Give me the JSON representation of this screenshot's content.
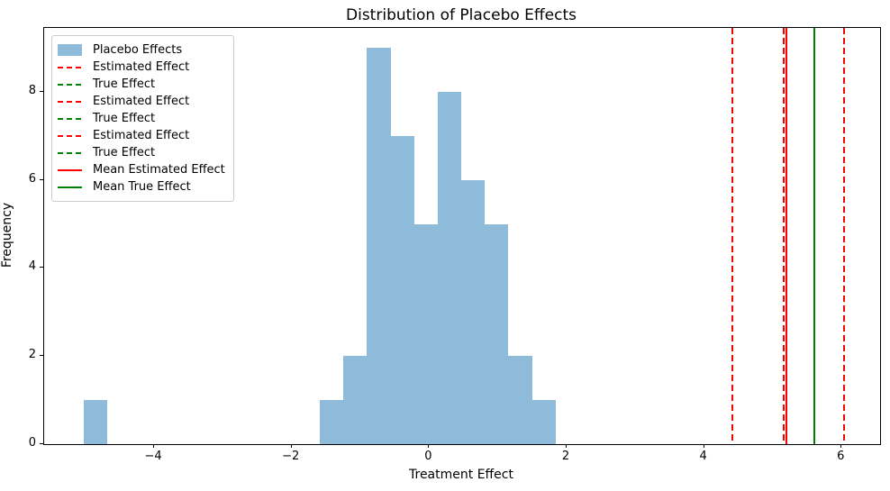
{
  "chart_data": {
    "type": "bar",
    "subtype": "histogram-with-vlines",
    "title": "Distribution of Placebo Effects",
    "xlabel": "Treatment Effect",
    "ylabel": "Frequency",
    "xlim": [
      -5.6,
      6.56
    ],
    "ylim": [
      0,
      9.45
    ],
    "grid": false,
    "legend_position": "upper-left",
    "bar_color": "#8fbbda",
    "accent_red": "#ff0000",
    "accent_green": "#008000",
    "bins": {
      "start": -5.02,
      "width": 0.343,
      "counts": [
        1,
        0,
        0,
        0,
        0,
        0,
        0,
        0,
        0,
        0,
        1,
        2,
        9,
        7,
        5,
        8,
        6,
        5,
        2,
        1
      ]
    },
    "series_label": "Placebo Effects",
    "xticks": [
      {
        "value": -4,
        "label": "−4"
      },
      {
        "value": -2,
        "label": "−2"
      },
      {
        "value": 0,
        "label": "0"
      },
      {
        "value": 2,
        "label": "2"
      },
      {
        "value": 4,
        "label": "4"
      },
      {
        "value": 6,
        "label": "6"
      }
    ],
    "yticks": [
      {
        "value": 0,
        "label": "0"
      },
      {
        "value": 2,
        "label": "2"
      },
      {
        "value": 4,
        "label": "4"
      },
      {
        "value": 6,
        "label": "6"
      },
      {
        "value": 8,
        "label": "8"
      }
    ],
    "vlines": [
      {
        "label": "Estimated Effect",
        "x": 4.41,
        "color": "#ff0000",
        "style": "dashed"
      },
      {
        "label": "True Effect",
        "x": 5.6,
        "color": "#008000",
        "style": "dashed"
      },
      {
        "label": "Estimated Effect",
        "x": 5.16,
        "color": "#ff0000",
        "style": "dashed"
      },
      {
        "label": "True Effect",
        "x": 5.6,
        "color": "#008000",
        "style": "dashed"
      },
      {
        "label": "Estimated Effect",
        "x": 6.03,
        "color": "#ff0000",
        "style": "dashed"
      },
      {
        "label": "True Effect",
        "x": 5.6,
        "color": "#008000",
        "style": "dashed"
      },
      {
        "label": "Mean Estimated Effect",
        "x": 5.2,
        "color": "#ff0000",
        "style": "solid"
      },
      {
        "label": "Mean True Effect",
        "x": 5.6,
        "color": "#008000",
        "style": "solid"
      }
    ],
    "legend": [
      {
        "label": "Placebo Effects",
        "swatch": "patch",
        "color": "#8fbbda"
      },
      {
        "label": "Estimated Effect",
        "swatch": "dashed",
        "color": "#ff0000"
      },
      {
        "label": "True Effect",
        "swatch": "dashed",
        "color": "#008000"
      },
      {
        "label": "Estimated Effect",
        "swatch": "dashed",
        "color": "#ff0000"
      },
      {
        "label": "True Effect",
        "swatch": "dashed",
        "color": "#008000"
      },
      {
        "label": "Estimated Effect",
        "swatch": "dashed",
        "color": "#ff0000"
      },
      {
        "label": "True Effect",
        "swatch": "dashed",
        "color": "#008000"
      },
      {
        "label": "Mean Estimated Effect",
        "swatch": "solid",
        "color": "#ff0000"
      },
      {
        "label": "Mean True Effect",
        "swatch": "solid",
        "color": "#008000"
      }
    ]
  }
}
